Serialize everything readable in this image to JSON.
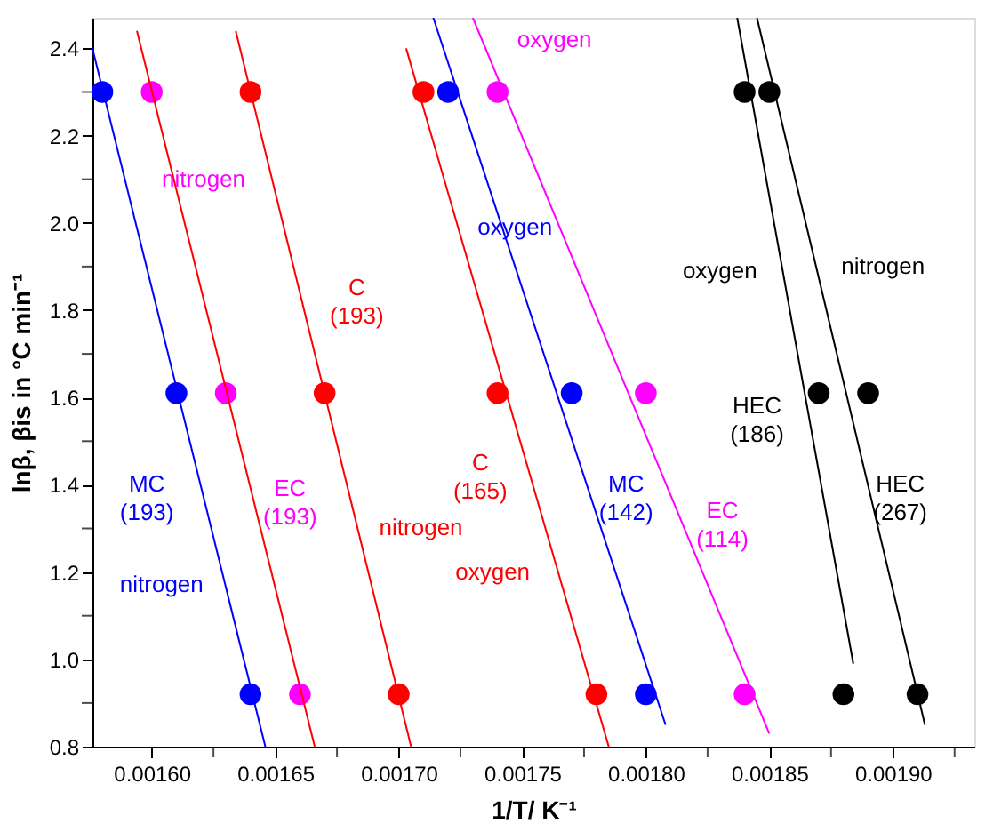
{
  "chart_data": {
    "type": "scatter",
    "xlabel": "1/T/ K⁻¹",
    "ylabel": "lnβ, βis in °C min⁻¹",
    "xlim": [
      0.001576,
      0.001933
    ],
    "ylim": [
      0.8,
      2.47
    ],
    "xticks": [
      {
        "value": 0.0016,
        "label": "0.00160"
      },
      {
        "value": 0.001625,
        "label": null
      },
      {
        "value": 0.00165,
        "label": "0.00165"
      },
      {
        "value": 0.001675,
        "label": null
      },
      {
        "value": 0.0017,
        "label": "0.00170"
      },
      {
        "value": 0.001725,
        "label": null
      },
      {
        "value": 0.00175,
        "label": "0.00175"
      },
      {
        "value": 0.001775,
        "label": null
      },
      {
        "value": 0.0018,
        "label": "0.00180"
      },
      {
        "value": 0.001825,
        "label": null
      },
      {
        "value": 0.00185,
        "label": "0.00185"
      },
      {
        "value": 0.001875,
        "label": null
      },
      {
        "value": 0.0019,
        "label": "0.00190"
      },
      {
        "value": 0.001925,
        "label": null
      }
    ],
    "yticks": [
      0.8,
      {
        "value": 0.9,
        "label": null
      },
      {
        "value": 1.0,
        "label": "1.0"
      },
      {
        "value": 1.1,
        "label": null
      },
      1.2,
      {
        "value": 1.3,
        "label": null
      },
      1.4,
      {
        "value": 1.5,
        "label": null
      },
      1.6,
      {
        "value": 1.7,
        "label": null
      },
      1.8,
      {
        "value": 1.9,
        "label": null
      },
      {
        "value": 2.0,
        "label": "2.0"
      },
      {
        "value": 2.1,
        "label": null
      },
      2.2,
      {
        "value": 2.3,
        "label": null
      },
      2.4
    ],
    "grid": false,
    "marker": "circle",
    "series": [
      {
        "color": "#0000ff",
        "x": [
          0.00158,
          0.00161,
          0.00164
        ],
        "values": [
          2.3,
          1.61,
          0.92
        ]
      },
      {
        "color": "#ff00ff",
        "x": [
          0.0016,
          0.00163,
          0.00166
        ],
        "values": [
          2.3,
          1.61,
          0.92
        ]
      },
      {
        "color": "#ff0000",
        "x": [
          0.00164,
          0.00167,
          0.0017
        ],
        "values": [
          2.3,
          1.61,
          0.92
        ]
      },
      {
        "color": "#ff0000",
        "x": [
          0.00171,
          0.00174,
          0.00178
        ],
        "values": [
          2.3,
          1.61,
          0.92
        ]
      },
      {
        "color": "#0000ff",
        "x": [
          0.00172,
          0.00177,
          0.0018
        ],
        "values": [
          2.3,
          1.61,
          0.92
        ]
      },
      {
        "color": "#ff00ff",
        "x": [
          0.00174,
          0.0018,
          0.00184
        ],
        "values": [
          2.3,
          1.61,
          0.92
        ]
      },
      {
        "color": "#000000",
        "x": [
          0.00184,
          0.00187,
          0.00188
        ],
        "values": [
          2.3,
          1.61,
          0.92
        ]
      },
      {
        "color": "#000000",
        "x": [
          0.00185,
          0.00189,
          0.00191
        ],
        "values": [
          2.3,
          1.61,
          0.92
        ]
      },
      {
        "type": "line",
        "marker": "none",
        "line_style": "solid",
        "color": "#0000ff",
        "x": [
          0.001576,
          0.001646
        ],
        "values": [
          2.4,
          0.8
        ]
      },
      {
        "type": "line",
        "marker": "none",
        "line_style": "solid",
        "color": "#ff0000",
        "x": [
          0.001594,
          0.001666
        ],
        "values": [
          2.44,
          0.8
        ]
      },
      {
        "type": "line",
        "marker": "none",
        "line_style": "solid",
        "color": "#ff0000",
        "x": [
          0.001634,
          0.001705
        ],
        "values": [
          2.44,
          0.8
        ]
      },
      {
        "type": "line",
        "marker": "none",
        "line_style": "solid",
        "color": "#ff0000",
        "x": [
          0.001703,
          0.001785
        ],
        "values": [
          2.4,
          0.8
        ]
      },
      {
        "type": "line",
        "marker": "none",
        "line_style": "solid",
        "color": "#0000ff",
        "x": [
          0.001714,
          0.001808
        ],
        "values": [
          2.47,
          0.85
        ]
      },
      {
        "type": "line",
        "marker": "none",
        "line_style": "solid",
        "color": "#ff00ff",
        "x": [
          0.00173,
          0.00185
        ],
        "values": [
          2.47,
          0.83
        ]
      },
      {
        "type": "line",
        "marker": "none",
        "line_style": "solid",
        "color": "#000000",
        "x": [
          0.001837,
          0.001884
        ],
        "values": [
          2.47,
          0.99
        ]
      },
      {
        "type": "line",
        "marker": "none",
        "line_style": "solid",
        "color": "#000000",
        "x": [
          0.001845,
          0.001913
        ],
        "values": [
          2.47,
          0.85
        ]
      }
    ],
    "annotations": [
      "nitrogen",
      "C\n(193)",
      "MC\n(193)",
      "EC\n(193)",
      "nitrogen",
      "nitrogen",
      "oxygen",
      "oxygen",
      "oxygen",
      "nitrogen",
      "HEC\n(186)",
      "HEC\n(267)",
      "C\n(165)",
      "oxygen",
      "MC\n(142)",
      "EC\n(114)"
    ]
  }
}
